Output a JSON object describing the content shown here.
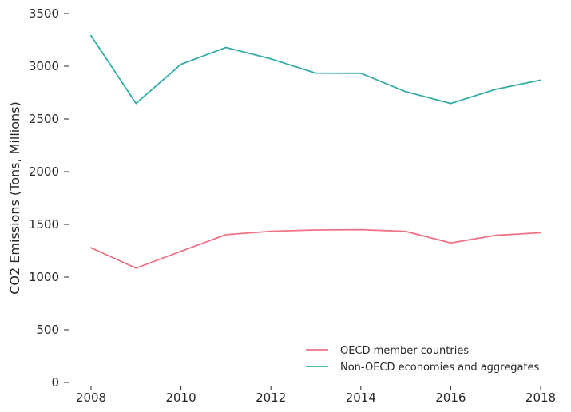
{
  "chart_data": {
    "type": "line",
    "title": "",
    "xlabel": "",
    "ylabel": "CO2 Emissions (Tons, Millions)",
    "x": [
      2008,
      2009,
      2010,
      2011,
      2012,
      2013,
      2014,
      2015,
      2016,
      2017,
      2018
    ],
    "xticks": [
      "2008",
      "2010",
      "2012",
      "2014",
      "2016",
      "2018"
    ],
    "yticks": [
      "0",
      "500",
      "1000",
      "1500",
      "2000",
      "2500",
      "3000",
      "3500"
    ],
    "ylim": [
      0,
      3500
    ],
    "xlim": [
      2008,
      2018
    ],
    "grid": false,
    "legend_position": "bottom-right",
    "series": [
      {
        "name": "OECD member countries",
        "color": "#f07285",
        "values": [
          1278,
          1085,
          1245,
          1402,
          1435,
          1447,
          1450,
          1433,
          1324,
          1396,
          1421
        ]
      },
      {
        "name": "Non-OECD economies and aggregates",
        "color": "#36aca6",
        "values": [
          3290,
          2647,
          3018,
          3178,
          3070,
          2935,
          2933,
          2758,
          2647,
          2781,
          2868
        ]
      }
    ]
  }
}
